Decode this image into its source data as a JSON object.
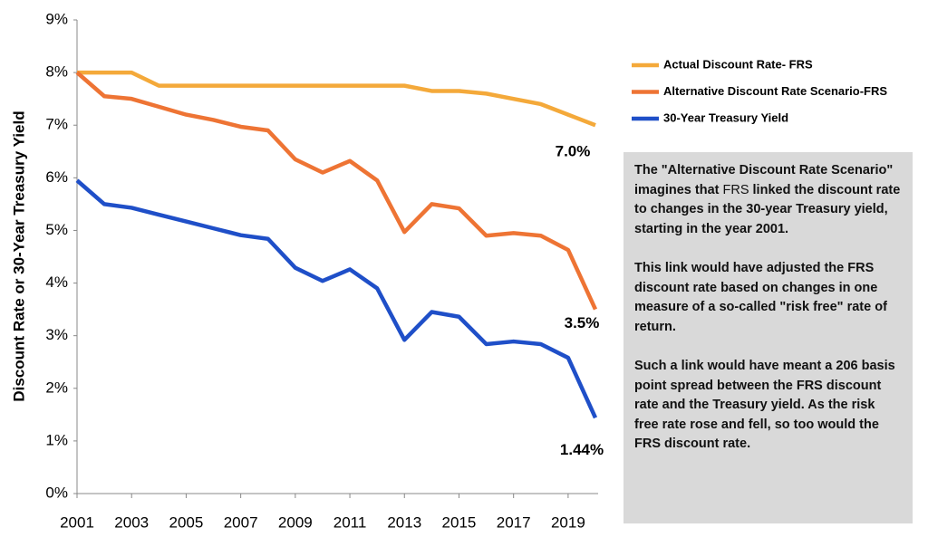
{
  "chart_data": {
    "type": "line",
    "y_label": "Discount Rate or 30-Year Treasury Yield",
    "x": [
      2001,
      2002,
      2003,
      2004,
      2005,
      2006,
      2007,
      2008,
      2009,
      2010,
      2011,
      2012,
      2013,
      2014,
      2015,
      2016,
      2017,
      2018,
      2019,
      2020
    ],
    "series": [
      {
        "name": "Actual Discount Rate- FRS",
        "color": "#f4a93a",
        "end_label": "7.0%",
        "values": [
          8,
          8,
          8,
          7.75,
          7.75,
          7.75,
          7.75,
          7.75,
          7.75,
          7.75,
          7.75,
          7.75,
          7.75,
          7.65,
          7.65,
          7.6,
          7.5,
          7.4,
          7.2,
          7.0
        ]
      },
      {
        "name": "Alternative Discount Rate Scenario-FRS",
        "color": "#ee7434",
        "end_label": "3.5%",
        "values": [
          8.0,
          7.55,
          7.5,
          7.35,
          7.2,
          7.1,
          6.97,
          6.9,
          6.35,
          6.1,
          6.32,
          5.95,
          4.97,
          5.5,
          5.42,
          4.9,
          4.95,
          4.9,
          4.63,
          3.5
        ]
      },
      {
        "name": "30-Year Treasury Yield",
        "color": "#1f4fc8",
        "end_label": "1.44%",
        "values": [
          5.95,
          5.5,
          5.43,
          5.3,
          5.17,
          5.04,
          4.91,
          4.84,
          4.29,
          4.04,
          4.26,
          3.9,
          2.92,
          3.45,
          3.36,
          2.84,
          2.89,
          2.84,
          2.58,
          1.44
        ]
      }
    ],
    "xlim": [
      2001,
      2020
    ],
    "xticks": [
      2001,
      2003,
      2005,
      2007,
      2009,
      2011,
      2013,
      2015,
      2017,
      2019
    ],
    "ylim": [
      0,
      9
    ],
    "yticks": [
      {
        "value": 0,
        "label": "0%"
      },
      {
        "value": 1,
        "label": "1%"
      },
      {
        "value": 2,
        "label": "2%"
      },
      {
        "value": 3,
        "label": "3%"
      },
      {
        "value": 4,
        "label": "4%"
      },
      {
        "value": 5,
        "label": "5%"
      },
      {
        "value": 6,
        "label": "6%"
      },
      {
        "value": 7,
        "label": "7%"
      },
      {
        "value": 8,
        "label": "8%"
      },
      {
        "value": 9,
        "label": "9%"
      }
    ],
    "grid": false,
    "note": [
      [
        "The \"Alternative Discount Rate Scenario\" imagines that ",
        "FRS",
        " linked the discount rate to changes in the 30-year Treasury yield, starting in the year 2001."
      ],
      "This link would have adjusted the FRS discount rate based on changes in one measure of a so-called \"risk free\" rate of return.",
      "Such a link would have meant a 206 basis point spread between the FRS discount rate and the Treasury yield. As the risk free rate rose and fell, so too would the FRS discount rate."
    ]
  }
}
